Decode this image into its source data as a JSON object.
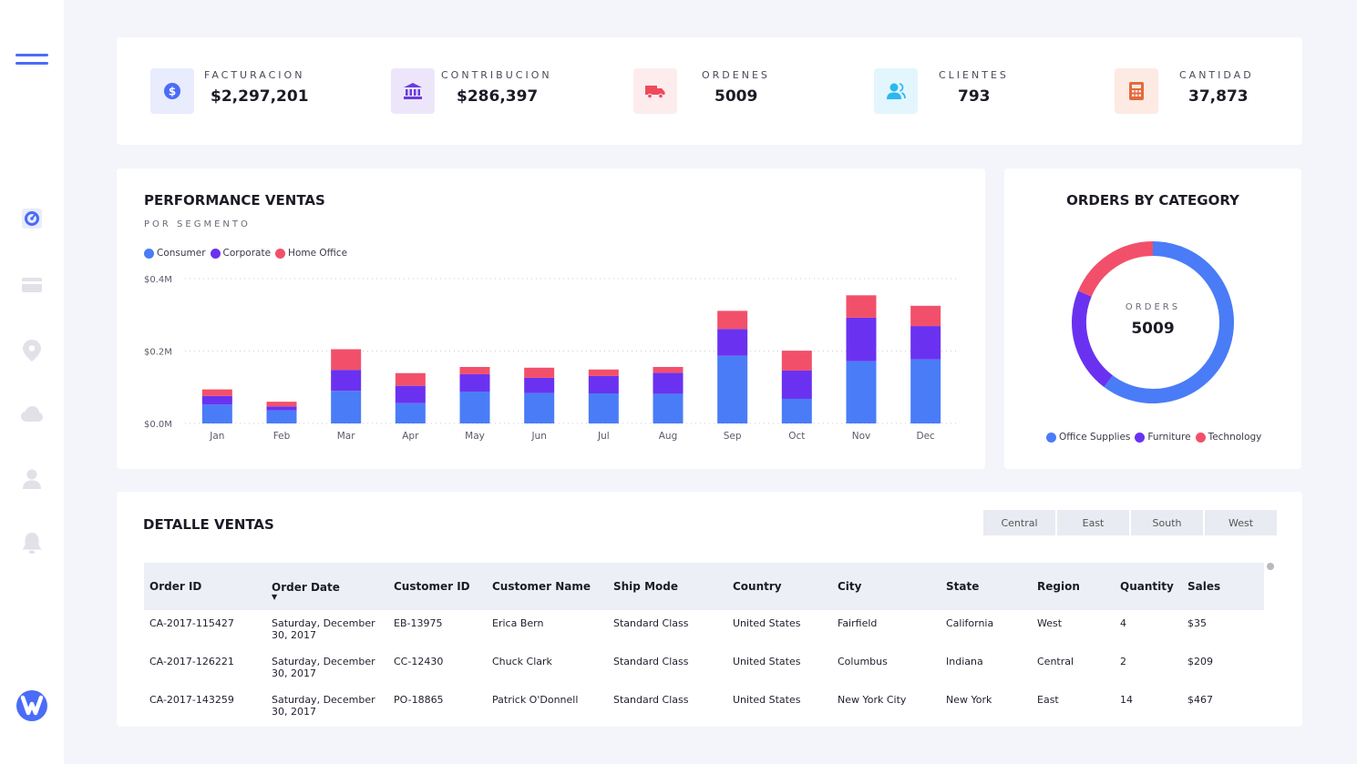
{
  "sidebar": {
    "items": [
      {
        "icon": "menu-icon"
      },
      {
        "icon": "dashboard-gauge-icon",
        "active": true
      },
      {
        "icon": "card-icon"
      },
      {
        "icon": "map-pin-icon"
      },
      {
        "icon": "cloud-icon"
      },
      {
        "icon": "user-icon"
      },
      {
        "icon": "bell-icon"
      },
      {
        "icon": "brand-logo-icon"
      }
    ]
  },
  "kpis": [
    {
      "label": "FACTURACION",
      "value": "$2,297,201",
      "icon": "dollar-icon",
      "color": "#4a6cf7",
      "bg": "#e8ecfd"
    },
    {
      "label": "CONTRIBUCION",
      "value": "$286,397",
      "icon": "bank-icon",
      "color": "#6a3be0",
      "bg": "#ede6fb"
    },
    {
      "label": "ORDENES",
      "value": "5009",
      "icon": "truck-icon",
      "color": "#ef4a5b",
      "bg": "#fdecee"
    },
    {
      "label": "CLIENTES",
      "value": "793",
      "icon": "users-icon",
      "color": "#2bb8f0",
      "bg": "#e3f6fd"
    },
    {
      "label": "CANTIDAD",
      "value": "37,873",
      "icon": "calculator-icon",
      "color": "#e36a3c",
      "bg": "#fceae3"
    }
  ],
  "performance": {
    "title": "PERFORMANCE VENTAS",
    "subtitle": "POR SEGMENTO"
  },
  "donut": {
    "title": "ORDERS BY CATEGORY",
    "center_label": "ORDERS",
    "center_value": "5009"
  },
  "chart_data": [
    {
      "type": "bar",
      "stacked": true,
      "categories": [
        "Jan",
        "Feb",
        "Mar",
        "Apr",
        "May",
        "Jun",
        "Jul",
        "Aug",
        "Sep",
        "Oct",
        "Nov",
        "Dec"
      ],
      "series": [
        {
          "name": "Consumer",
          "color": "#4a7cf7",
          "values": [
            52,
            36,
            90,
            56,
            88,
            84,
            83,
            82,
            187,
            68,
            172,
            177
          ]
        },
        {
          "name": "Corporate",
          "color": "#6a32f0",
          "values": [
            24,
            11,
            58,
            48,
            48,
            42,
            48,
            58,
            74,
            78,
            120,
            92
          ]
        },
        {
          "name": "Home Office",
          "color": "#f2506a",
          "values": [
            18,
            13,
            57,
            35,
            20,
            28,
            18,
            16,
            50,
            55,
            62,
            56
          ]
        }
      ],
      "yticks": [
        "$0.0M",
        "$0.2M",
        "$0.4M"
      ],
      "ylim": [
        0,
        400
      ],
      "legend_position": "top-left"
    },
    {
      "type": "pie",
      "donut": true,
      "categories": [
        "Office Supplies",
        "Furniture",
        "Technology"
      ],
      "values": [
        3020,
        1055,
        934
      ],
      "colors": [
        "#4a7cf7",
        "#6a32f0",
        "#f2506a"
      ],
      "legend_position": "bottom"
    }
  ],
  "table_section": {
    "title": "DETALLE VENTAS",
    "filters": [
      "Central",
      "East",
      "South",
      "West"
    ],
    "columns": [
      "Order ID",
      "Order Date",
      "Customer ID",
      "Customer Name",
      "Ship Mode",
      "Country",
      "City",
      "State",
      "Region",
      "Quantity",
      "Sales"
    ],
    "sort_indicator": "▼",
    "rows": [
      [
        "CA-2017-115427",
        "Saturday, December 30, 2017",
        "EB-13975",
        "Erica Bern",
        "Standard Class",
        "United States",
        "Fairfield",
        "California",
        "West",
        "4",
        "$35"
      ],
      [
        "CA-2017-126221",
        "Saturday, December 30, 2017",
        "CC-12430",
        "Chuck Clark",
        "Standard Class",
        "United States",
        "Columbus",
        "Indiana",
        "Central",
        "2",
        "$209"
      ],
      [
        "CA-2017-143259",
        "Saturday, December 30, 2017",
        "PO-18865",
        "Patrick O'Donnell",
        "Standard Class",
        "United States",
        "New York City",
        "New York",
        "East",
        "14",
        "$467"
      ]
    ]
  }
}
